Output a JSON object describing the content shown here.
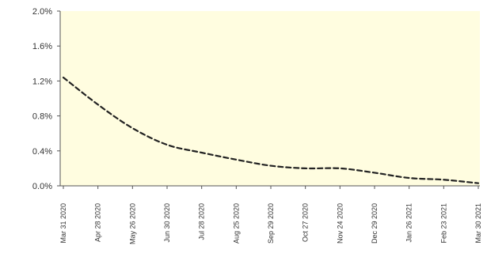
{
  "chart_data": {
    "type": "line",
    "title": "",
    "xlabel": "",
    "ylabel": "",
    "ylim": [
      0.0,
      2.0
    ],
    "yticks": [
      0.0,
      0.4,
      0.8,
      1.2,
      1.6,
      2.0
    ],
    "ytick_labels": [
      "0.0%",
      "0.4%",
      "0.8%",
      "1.2%",
      "1.6%",
      "2.0%"
    ],
    "x": [
      "Mar 31 2020",
      "Apr 28 2020",
      "May 26 2020",
      "Jun 30 2020",
      "Jul 28 2020",
      "Aug 25 2020",
      "Sep 29 2020",
      "Oct 27 2020",
      "Nov 24 2020",
      "Dec 29 2020",
      "Jan 26 2021",
      "Feb 23 2021",
      "Mar 30 2021"
    ],
    "series": [
      {
        "values": [
          1.24,
          0.93,
          0.66,
          0.47,
          0.38,
          0.3,
          0.23,
          0.2,
          0.2,
          0.15,
          0.09,
          0.07,
          0.03
        ]
      }
    ],
    "grid": false,
    "legend": "none",
    "plot_background": "#fffde0",
    "line_color": "#222222",
    "line_style": "dashed"
  }
}
